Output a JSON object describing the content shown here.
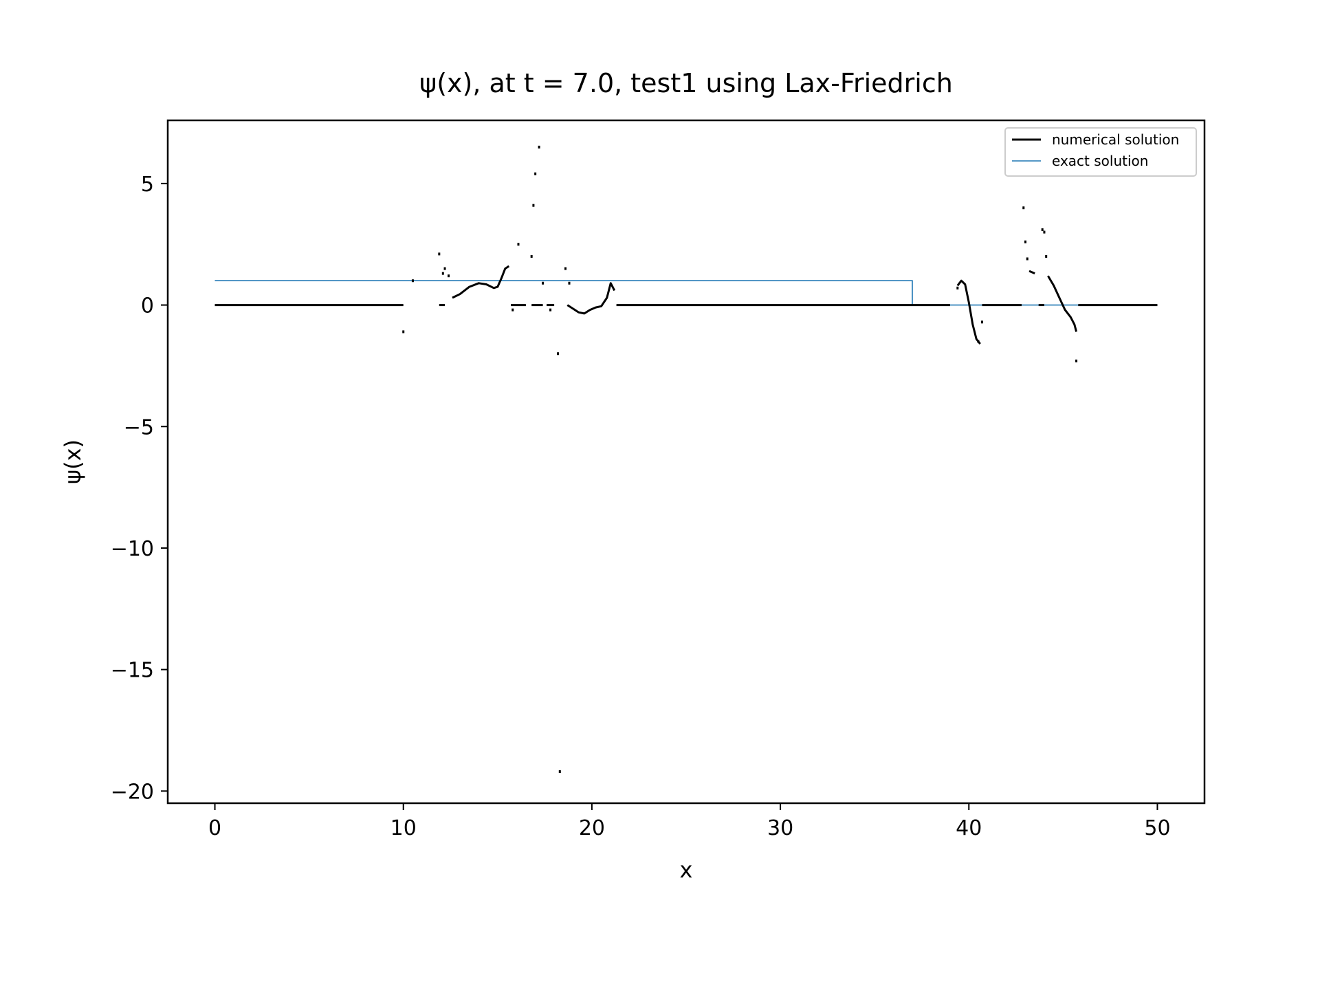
{
  "chart_data": {
    "type": "line",
    "title": "ψ(x), at t = 7.0, test1 using Lax-Friedrich",
    "xlabel": "x",
    "ylabel": "ψ(x)",
    "xlim": [
      -2.5,
      52.5
    ],
    "ylim": [
      -20.5,
      7.6
    ],
    "xticks": [
      0,
      10,
      20,
      30,
      40,
      50
    ],
    "xtick_labels": [
      "0",
      "10",
      "20",
      "30",
      "40",
      "50"
    ],
    "yticks": [
      5,
      0,
      -5,
      -10,
      -15,
      -20
    ],
    "ytick_labels": [
      "5",
      "0",
      "−5",
      "−10",
      "−15",
      "−20"
    ],
    "grid": false,
    "legend_position": "top-right",
    "series": [
      {
        "name": "numerical solution",
        "color": "#000000",
        "style": "line with broken segments and scattered points",
        "segments": [
          [
            [
              0,
              0
            ],
            [
              10,
              0
            ]
          ],
          [
            [
              11.9,
              0
            ],
            [
              12.2,
              0
            ]
          ],
          [
            [
              12.6,
              0.3
            ],
            [
              13.0,
              0.45
            ],
            [
              13.5,
              0.75
            ],
            [
              14.0,
              0.9
            ],
            [
              14.4,
              0.85
            ],
            [
              14.8,
              0.7
            ],
            [
              15.0,
              0.75
            ],
            [
              15.2,
              1.1
            ],
            [
              15.4,
              1.5
            ],
            [
              15.6,
              1.6
            ]
          ],
          [
            [
              15.7,
              0
            ],
            [
              16.5,
              0
            ]
          ],
          [
            [
              16.8,
              0
            ],
            [
              17.4,
              0
            ]
          ],
          [
            [
              17.6,
              0
            ],
            [
              18.0,
              0
            ]
          ],
          [
            [
              18.7,
              0
            ],
            [
              19.0,
              -0.15
            ],
            [
              19.3,
              -0.3
            ],
            [
              19.6,
              -0.35
            ],
            [
              19.9,
              -0.2
            ],
            [
              20.2,
              -0.1
            ],
            [
              20.5,
              -0.05
            ],
            [
              20.8,
              0.3
            ],
            [
              21.0,
              0.9
            ],
            [
              21.2,
              0.6
            ]
          ],
          [
            [
              21.3,
              0
            ],
            [
              39.0,
              0
            ]
          ],
          [
            [
              39.4,
              0.8
            ],
            [
              39.6,
              1.0
            ],
            [
              39.8,
              0.85
            ],
            [
              40.0,
              0.1
            ],
            [
              40.2,
              -0.8
            ],
            [
              40.4,
              -1.4
            ],
            [
              40.6,
              -1.6
            ]
          ],
          [
            [
              40.7,
              0
            ],
            [
              42.8,
              0
            ]
          ],
          [
            [
              43.2,
              1.4
            ],
            [
              43.5,
              1.3
            ]
          ],
          [
            [
              43.7,
              0
            ],
            [
              44.0,
              0
            ]
          ],
          [
            [
              44.2,
              1.2
            ],
            [
              44.5,
              0.8
            ],
            [
              44.8,
              0.3
            ],
            [
              45.1,
              -0.2
            ],
            [
              45.4,
              -0.5
            ],
            [
              45.6,
              -0.8
            ],
            [
              45.7,
              -1.1
            ]
          ],
          [
            [
              45.8,
              0
            ],
            [
              50,
              0
            ]
          ]
        ],
        "points": [
          [
            10,
            -1.1
          ],
          [
            10.5,
            1.0
          ],
          [
            11.9,
            2.1
          ],
          [
            12.1,
            1.3
          ],
          [
            12.2,
            1.5
          ],
          [
            12.4,
            1.2
          ],
          [
            15.8,
            -0.2
          ],
          [
            16.1,
            2.5
          ],
          [
            16.8,
            2.0
          ],
          [
            16.9,
            4.1
          ],
          [
            17.0,
            5.4
          ],
          [
            17.2,
            6.5
          ],
          [
            17.4,
            0.9
          ],
          [
            17.8,
            -0.2
          ],
          [
            18.2,
            -2.0
          ],
          [
            18.3,
            -19.2
          ],
          [
            18.6,
            1.5
          ],
          [
            18.8,
            0.9
          ],
          [
            39.4,
            0.7
          ],
          [
            40.5,
            -1.5
          ],
          [
            40.7,
            -0.7
          ],
          [
            42.9,
            4.0
          ],
          [
            43.0,
            2.6
          ],
          [
            43.1,
            1.9
          ],
          [
            43.9,
            3.1
          ],
          [
            44.0,
            3.0
          ],
          [
            44.1,
            2.0
          ],
          [
            45.7,
            -2.3
          ]
        ]
      },
      {
        "name": "exact solution",
        "color": "#1f77b4",
        "style": "step line",
        "x": [
          0,
          37,
          37,
          50
        ],
        "values": [
          1,
          1,
          0,
          0
        ]
      }
    ]
  }
}
